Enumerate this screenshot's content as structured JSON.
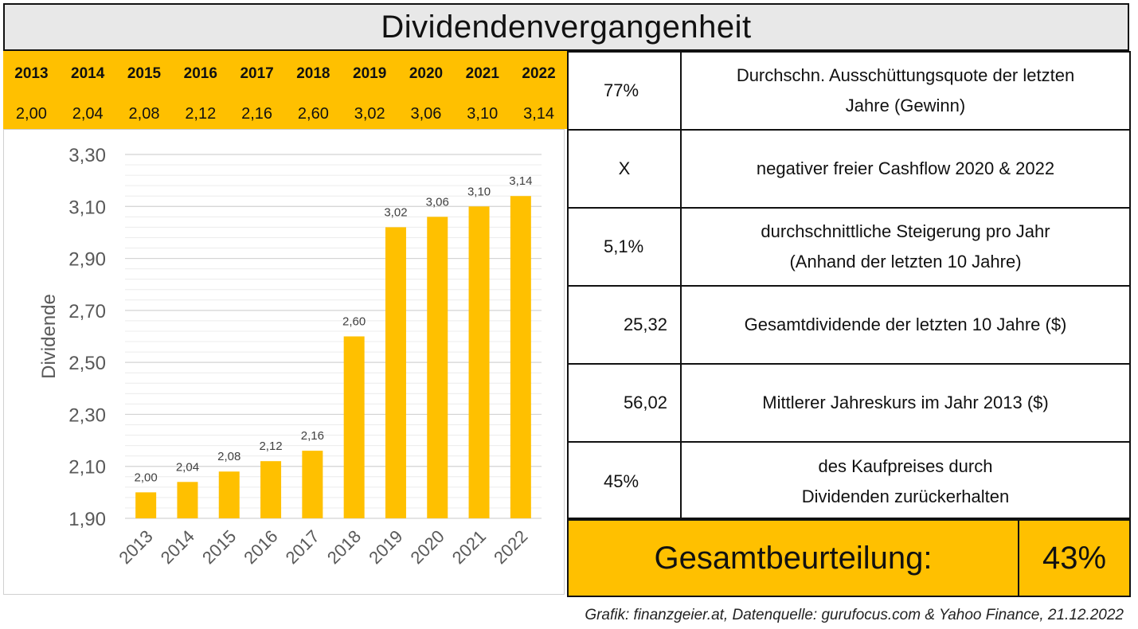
{
  "header": {
    "title": "Dividendenvergangenheit"
  },
  "year_table": {
    "years": [
      "2013",
      "2014",
      "2015",
      "2016",
      "2017",
      "2018",
      "2019",
      "2020",
      "2021",
      "2022"
    ],
    "values": [
      "2,00",
      "2,04",
      "2,08",
      "2,12",
      "2,16",
      "2,60",
      "3,02",
      "3,06",
      "3,10",
      "3,14"
    ]
  },
  "info_table": {
    "rows": [
      {
        "value": "77%",
        "description": "Durchschn. Ausschüttungsquote der letzten\nJahre (Gewinn)"
      },
      {
        "value": "X",
        "description": "negativer freier Cashflow 2020 & 2022"
      },
      {
        "value": "5,1%",
        "description": "durchschnittliche Steigerung pro Jahr\n(Anhand der letzten 10 Jahre)"
      },
      {
        "value": "25,32",
        "description": "Gesamtdividende der letzten 10 Jahre ($)"
      },
      {
        "value": "56,02",
        "description": "Mittlerer Jahreskurs im Jahr 2013 ($)"
      },
      {
        "value": "45%",
        "description": "des Kaufpreises durch\nDividenden zurückerhalten"
      }
    ]
  },
  "summary": {
    "label": "Gesamtbeurteilung:",
    "score": "43%"
  },
  "footer": {
    "source": "Grafik: finanzgeier.at, Datenquelle: gurufocus.com & Yahoo Finance, 21.12.2022"
  },
  "chart_data": {
    "type": "bar",
    "categories": [
      "2013",
      "2014",
      "2015",
      "2016",
      "2017",
      "2018",
      "2019",
      "2020",
      "2021",
      "2022"
    ],
    "values": [
      2.0,
      2.04,
      2.08,
      2.12,
      2.16,
      2.6,
      3.02,
      3.06,
      3.1,
      3.14
    ],
    "data_labels": [
      "2,00",
      "2,04",
      "2,08",
      "2,12",
      "2,16",
      "2,60",
      "3,02",
      "3,06",
      "3,10",
      "3,14"
    ],
    "ylabel": "Dividende",
    "ylim": [
      1.9,
      3.3
    ],
    "yticks": [
      1.9,
      2.1,
      2.3,
      2.5,
      2.7,
      2.9,
      3.1,
      3.3
    ],
    "ytick_labels": [
      "1,90",
      "2,10",
      "2,30",
      "2,50",
      "2,70",
      "2,90",
      "3,10",
      "3,30"
    ],
    "grid": true,
    "bar_color": "#ffc000"
  }
}
